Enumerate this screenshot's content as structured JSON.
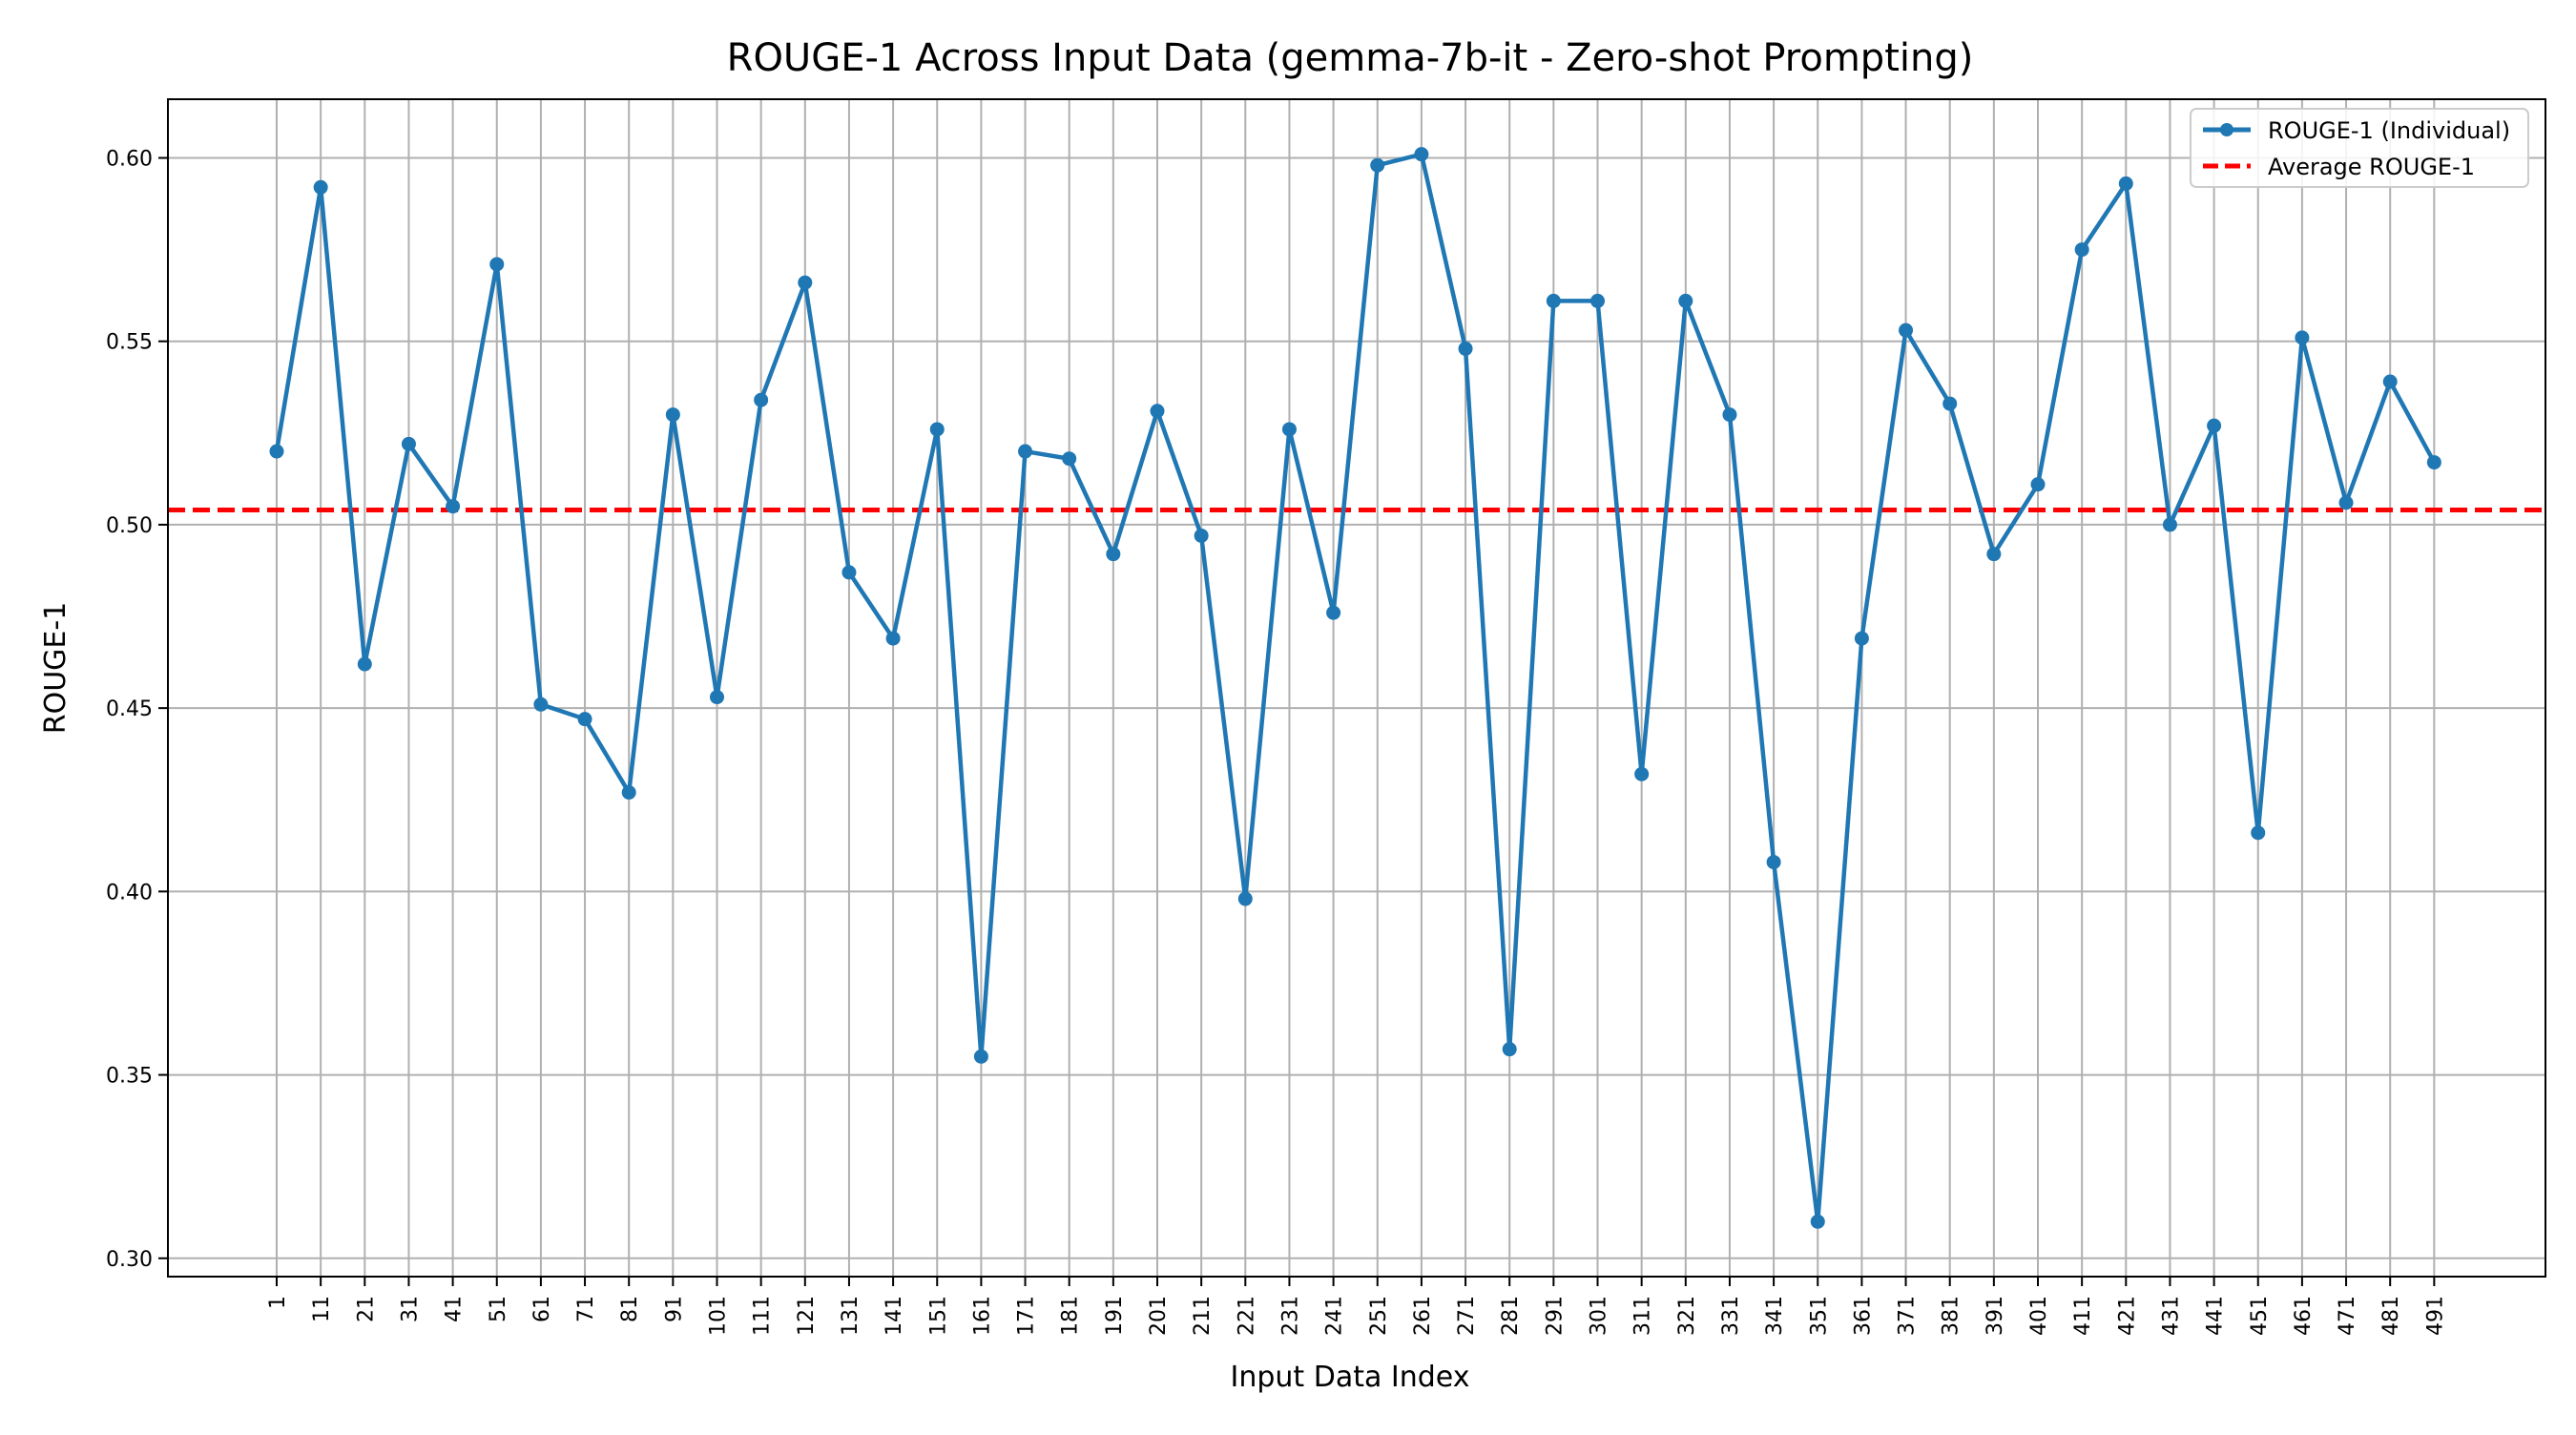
{
  "chart_data": {
    "type": "line",
    "title": "ROUGE-1 Across Input Data (gemma-7b-it - Zero-shot Prompting)",
    "xlabel": "Input Data Index",
    "ylabel": "ROUGE-1",
    "ylim": [
      0.295,
      0.616
    ],
    "yticks": [
      0.3,
      0.35,
      0.4,
      0.45,
      0.5,
      0.55,
      0.6
    ],
    "ytick_labels": [
      "0.30",
      "0.35",
      "0.40",
      "0.45",
      "0.50",
      "0.55",
      "0.60"
    ],
    "grid": true,
    "legend_position": "top-right",
    "x": [
      1,
      11,
      21,
      31,
      41,
      51,
      61,
      71,
      81,
      91,
      101,
      111,
      121,
      131,
      141,
      151,
      161,
      171,
      181,
      191,
      201,
      211,
      221,
      231,
      241,
      251,
      261,
      271,
      281,
      291,
      301,
      311,
      321,
      331,
      341,
      351,
      361,
      371,
      381,
      391,
      401,
      411,
      421,
      431,
      441,
      451,
      461,
      471,
      481,
      491
    ],
    "series": [
      {
        "name": "ROUGE-1 (Individual)",
        "color": "#1f77b4",
        "style": "solid-with-markers",
        "values": [
          0.52,
          0.592,
          0.462,
          0.522,
          0.505,
          0.571,
          0.451,
          0.447,
          0.427,
          0.53,
          0.453,
          0.534,
          0.566,
          0.487,
          0.469,
          0.526,
          0.355,
          0.52,
          0.518,
          0.492,
          0.531,
          0.497,
          0.398,
          0.526,
          0.476,
          0.598,
          0.601,
          0.548,
          0.357,
          0.561,
          0.561,
          0.432,
          0.561,
          0.53,
          0.408,
          0.31,
          0.469,
          0.553,
          0.533,
          0.492,
          0.511,
          0.575,
          0.593,
          0.5,
          0.527,
          0.416,
          0.551,
          0.506,
          0.539,
          0.517
        ]
      }
    ],
    "reference_lines": [
      {
        "name": "Average ROUGE-1",
        "value": 0.504,
        "color": "#ff0000",
        "style": "dashed"
      }
    ]
  }
}
